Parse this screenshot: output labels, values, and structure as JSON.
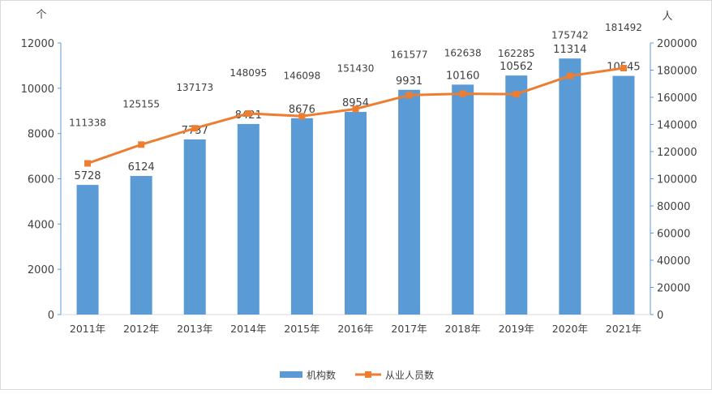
{
  "chart_data": {
    "type": "bar+line",
    "categories": [
      "2011年",
      "2012年",
      "2013年",
      "2014年",
      "2015年",
      "2016年",
      "2017年",
      "2018年",
      "2019年",
      "2020年",
      "2021年"
    ],
    "series": [
      {
        "name": "机构数",
        "type": "bar",
        "axis": "left",
        "color": "#5b9bd5",
        "values": [
          5728,
          6124,
          7737,
          8421,
          8676,
          8954,
          9931,
          10160,
          10562,
          11314,
          10545
        ]
      },
      {
        "name": "从业人员数",
        "type": "line",
        "axis": "right",
        "color": "#ed7d31",
        "values": [
          111338,
          125155,
          137173,
          148095,
          146098,
          151430,
          161577,
          162638,
          162285,
          175742,
          181492
        ]
      }
    ],
    "left_axis": {
      "unit": "个",
      "ylim": [
        0,
        12000
      ],
      "ticks": [
        0,
        2000,
        4000,
        6000,
        8000,
        10000,
        12000
      ]
    },
    "right_axis": {
      "unit": "人",
      "ylim": [
        0,
        200000
      ],
      "ticks": [
        0,
        20000,
        40000,
        60000,
        80000,
        100000,
        120000,
        140000,
        160000,
        180000,
        200000
      ]
    },
    "legend": {
      "placement": "bottom",
      "entries": [
        "机构数",
        "从业人员数"
      ]
    },
    "grid": false
  }
}
